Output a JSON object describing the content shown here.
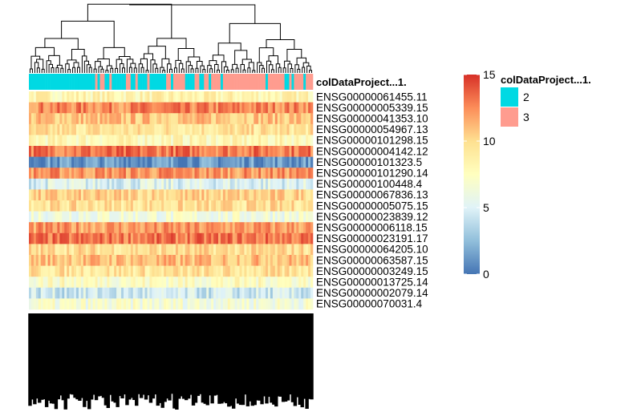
{
  "chart_data": {
    "type": "heatmap",
    "title": "",
    "annotation_track": {
      "name": "colDataProject...1.",
      "groups": [
        {
          "label": "2",
          "color": "#00D9E3"
        },
        {
          "label": "3",
          "color": "#FF9C8F"
        }
      ]
    },
    "colorbar": {
      "min": 0,
      "max": 15,
      "ticks": [
        0,
        5,
        10,
        15
      ],
      "colors": [
        "#4575B4",
        "#91BFDB",
        "#E0F3F8",
        "#FFFFBF",
        "#FEE090",
        "#FC8D59",
        "#D73027"
      ]
    },
    "rows": [
      {
        "label": "ENSG00000061455.11",
        "mean": 8.3
      },
      {
        "label": "ENSG00000005339.15",
        "mean": 12.6
      },
      {
        "label": "ENSG00000041353.10",
        "mean": 10.8
      },
      {
        "label": "ENSG00000054967.13",
        "mean": 9.5
      },
      {
        "label": "ENSG00000101298.15",
        "mean": 8.0
      },
      {
        "label": "ENSG00000004142.12",
        "mean": 13.1
      },
      {
        "label": "ENSG00000101323.5",
        "mean": 1.2
      },
      {
        "label": "ENSG00000101290.14",
        "mean": 12.2
      },
      {
        "label": "ENSG00000100448.4",
        "mean": 5.0
      },
      {
        "label": "ENSG00000067836.13",
        "mean": 10.2
      },
      {
        "label": "ENSG00000005075.15",
        "mean": 9.6
      },
      {
        "label": "ENSG00000023839.12",
        "mean": 6.4
      },
      {
        "label": "ENSG00000006118.15",
        "mean": 12.0
      },
      {
        "label": "ENSG00000023191.17",
        "mean": 13.0
      },
      {
        "label": "ENSG00000064205.10",
        "mean": 9.8
      },
      {
        "label": "ENSG00000063587.15",
        "mean": 11.0
      },
      {
        "label": "ENSG00000003249.15",
        "mean": 9.4
      },
      {
        "label": "ENSG00000013725.14",
        "mean": 7.4
      },
      {
        "label": "ENSG00000002079.14",
        "mean": 4.4
      },
      {
        "label": "ENSG00000070031.4",
        "mean": 6.6
      }
    ],
    "n_columns": 120,
    "column_labels_legible": false
  }
}
